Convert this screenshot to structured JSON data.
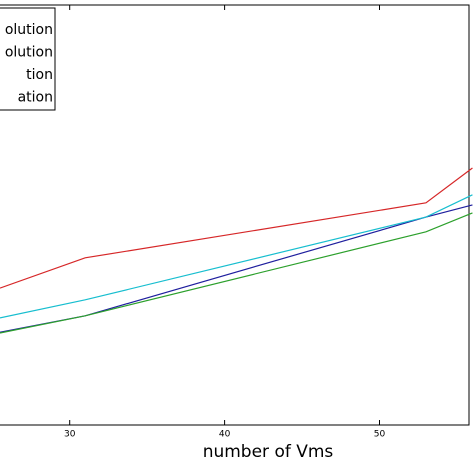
{
  "chart_data": {
    "type": "line",
    "x_label": "number of Vms",
    "x": [
      25.5,
      31,
      53,
      56
    ],
    "xlim": [
      25.5,
      56.1
    ],
    "xticks": [
      30,
      40,
      50
    ],
    "ylim": [
      0,
      100
    ],
    "legend": "upper left",
    "series": [
      {
        "name": "olution",
        "color": "#d62728",
        "values": [
          32.6,
          39.8,
          52.9,
          61.2
        ]
      },
      {
        "name": "olution",
        "color": "#1f1f9e",
        "values": [
          22.1,
          26.0,
          49.5,
          52.4
        ]
      },
      {
        "name": "tion",
        "color": "#2ca02c",
        "values": [
          21.9,
          26.0,
          46.0,
          50.5
        ]
      },
      {
        "name": "ation",
        "color": "#17becf",
        "values": [
          25.5,
          29.8,
          49.5,
          54.8
        ]
      }
    ]
  }
}
